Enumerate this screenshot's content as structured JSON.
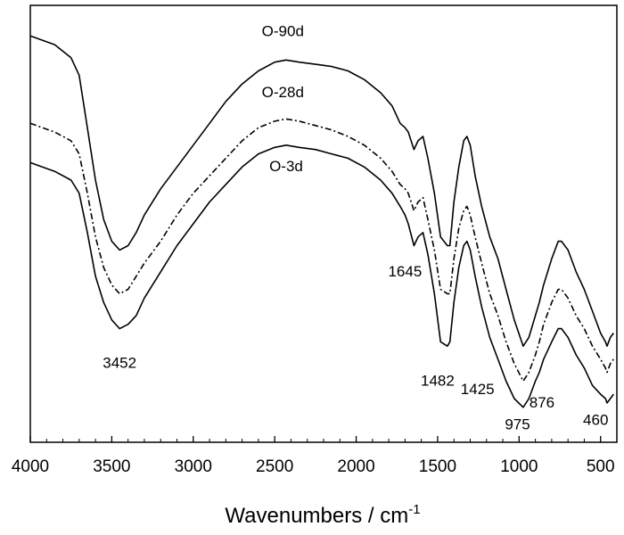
{
  "chart_data": {
    "type": "line",
    "title": "",
    "xlabel": "Wavenumbers / cm",
    "xlabel_superscript": "-1",
    "ylabel": "",
    "xlim": [
      4000,
      400
    ],
    "ylim": [
      0,
      100
    ],
    "x_reversed": true,
    "y_ticks_shown": false,
    "grid": false,
    "x_ticks": [
      "4000",
      "3500",
      "3000",
      "2500",
      "2000",
      "1500",
      "1000",
      "500"
    ],
    "series": [
      {
        "name": "O-90d",
        "line_style": "solid",
        "color": "#000000",
        "points": [
          [
            4000,
            93
          ],
          [
            3850,
            91
          ],
          [
            3750,
            88
          ],
          [
            3700,
            84
          ],
          [
            3650,
            72
          ],
          [
            3600,
            60
          ],
          [
            3550,
            51
          ],
          [
            3500,
            46
          ],
          [
            3452,
            44
          ],
          [
            3400,
            45
          ],
          [
            3350,
            48
          ],
          [
            3300,
            52
          ],
          [
            3200,
            58
          ],
          [
            3100,
            63
          ],
          [
            3000,
            68
          ],
          [
            2900,
            73
          ],
          [
            2800,
            78
          ],
          [
            2700,
            82
          ],
          [
            2600,
            85
          ],
          [
            2500,
            87
          ],
          [
            2430,
            87.5
          ],
          [
            2350,
            87
          ],
          [
            2250,
            86.5
          ],
          [
            2150,
            86
          ],
          [
            2050,
            85
          ],
          [
            1950,
            83
          ],
          [
            1850,
            80
          ],
          [
            1780,
            77
          ],
          [
            1730,
            73
          ],
          [
            1700,
            72
          ],
          [
            1680,
            71
          ],
          [
            1645,
            67
          ],
          [
            1620,
            69
          ],
          [
            1590,
            70
          ],
          [
            1560,
            65
          ],
          [
            1520,
            57
          ],
          [
            1482,
            47
          ],
          [
            1440,
            45
          ],
          [
            1425,
            45
          ],
          [
            1400,
            55
          ],
          [
            1370,
            63
          ],
          [
            1340,
            69
          ],
          [
            1320,
            70
          ],
          [
            1300,
            68
          ],
          [
            1270,
            61
          ],
          [
            1230,
            54
          ],
          [
            1180,
            47
          ],
          [
            1130,
            42
          ],
          [
            1080,
            35
          ],
          [
            1030,
            28
          ],
          [
            975,
            22
          ],
          [
            940,
            24
          ],
          [
            900,
            29
          ],
          [
            876,
            32
          ],
          [
            850,
            36
          ],
          [
            800,
            42
          ],
          [
            760,
            46
          ],
          [
            740,
            46
          ],
          [
            700,
            44
          ],
          [
            650,
            39
          ],
          [
            600,
            35
          ],
          [
            550,
            30
          ],
          [
            500,
            25
          ],
          [
            470,
            23
          ],
          [
            460,
            22
          ],
          [
            440,
            24
          ],
          [
            420,
            25
          ]
        ]
      },
      {
        "name": "O-28d",
        "line_style": "dashdot",
        "color": "#000000",
        "points": [
          [
            4000,
            73
          ],
          [
            3850,
            71
          ],
          [
            3750,
            69
          ],
          [
            3700,
            66
          ],
          [
            3650,
            57
          ],
          [
            3600,
            47
          ],
          [
            3550,
            40
          ],
          [
            3500,
            36
          ],
          [
            3452,
            34
          ],
          [
            3400,
            35
          ],
          [
            3350,
            38
          ],
          [
            3300,
            41
          ],
          [
            3200,
            46
          ],
          [
            3100,
            52
          ],
          [
            3000,
            57
          ],
          [
            2900,
            61
          ],
          [
            2800,
            65
          ],
          [
            2700,
            69
          ],
          [
            2600,
            72
          ],
          [
            2500,
            73.5
          ],
          [
            2430,
            74
          ],
          [
            2350,
            73.5
          ],
          [
            2250,
            72.5
          ],
          [
            2150,
            71.5
          ],
          [
            2050,
            70
          ],
          [
            1950,
            68
          ],
          [
            1850,
            65
          ],
          [
            1780,
            62
          ],
          [
            1730,
            59
          ],
          [
            1700,
            58
          ],
          [
            1680,
            57
          ],
          [
            1645,
            53
          ],
          [
            1620,
            55
          ],
          [
            1590,
            56
          ],
          [
            1560,
            51
          ],
          [
            1520,
            44
          ],
          [
            1482,
            35
          ],
          [
            1440,
            34
          ],
          [
            1425,
            34
          ],
          [
            1400,
            42
          ],
          [
            1370,
            49
          ],
          [
            1340,
            53
          ],
          [
            1320,
            54
          ],
          [
            1300,
            52
          ],
          [
            1270,
            47
          ],
          [
            1230,
            41
          ],
          [
            1180,
            34
          ],
          [
            1130,
            29
          ],
          [
            1080,
            23
          ],
          [
            1030,
            18
          ],
          [
            975,
            14
          ],
          [
            940,
            16
          ],
          [
            900,
            20
          ],
          [
            876,
            23
          ],
          [
            850,
            27
          ],
          [
            800,
            32
          ],
          [
            760,
            35
          ],
          [
            740,
            35
          ],
          [
            700,
            33
          ],
          [
            650,
            29
          ],
          [
            600,
            26
          ],
          [
            550,
            22
          ],
          [
            500,
            19
          ],
          [
            470,
            17
          ],
          [
            460,
            16
          ],
          [
            440,
            18
          ],
          [
            420,
            19
          ]
        ]
      },
      {
        "name": "O-3d",
        "line_style": "solid",
        "color": "#000000",
        "points": [
          [
            4000,
            64
          ],
          [
            3850,
            62
          ],
          [
            3750,
            60
          ],
          [
            3700,
            57
          ],
          [
            3650,
            48
          ],
          [
            3600,
            38
          ],
          [
            3550,
            32
          ],
          [
            3500,
            28
          ],
          [
            3452,
            26
          ],
          [
            3400,
            27
          ],
          [
            3350,
            29
          ],
          [
            3300,
            33
          ],
          [
            3200,
            39
          ],
          [
            3100,
            45
          ],
          [
            3000,
            50
          ],
          [
            2900,
            55
          ],
          [
            2800,
            59
          ],
          [
            2700,
            63
          ],
          [
            2600,
            66
          ],
          [
            2500,
            67.5
          ],
          [
            2430,
            68
          ],
          [
            2350,
            67.5
          ],
          [
            2250,
            67
          ],
          [
            2150,
            66
          ],
          [
            2050,
            65
          ],
          [
            1950,
            63
          ],
          [
            1850,
            60
          ],
          [
            1780,
            57
          ],
          [
            1730,
            54
          ],
          [
            1700,
            52
          ],
          [
            1680,
            50
          ],
          [
            1645,
            45
          ],
          [
            1620,
            47
          ],
          [
            1590,
            48
          ],
          [
            1560,
            43
          ],
          [
            1520,
            34
          ],
          [
            1482,
            23
          ],
          [
            1440,
            22
          ],
          [
            1425,
            23
          ],
          [
            1400,
            32
          ],
          [
            1370,
            40
          ],
          [
            1340,
            45
          ],
          [
            1320,
            46
          ],
          [
            1300,
            44
          ],
          [
            1270,
            38
          ],
          [
            1230,
            31
          ],
          [
            1180,
            24
          ],
          [
            1130,
            19
          ],
          [
            1080,
            14
          ],
          [
            1030,
            10
          ],
          [
            975,
            8
          ],
          [
            940,
            10
          ],
          [
            900,
            14
          ],
          [
            876,
            16
          ],
          [
            850,
            19
          ],
          [
            800,
            23
          ],
          [
            760,
            26
          ],
          [
            740,
            26
          ],
          [
            700,
            24
          ],
          [
            650,
            20
          ],
          [
            600,
            17
          ],
          [
            550,
            13
          ],
          [
            500,
            11
          ],
          [
            470,
            10
          ],
          [
            460,
            9
          ],
          [
            440,
            10
          ],
          [
            420,
            11
          ]
        ]
      }
    ],
    "curve_labels": [
      {
        "text": "O-90d",
        "x": 2450,
        "y": 93
      },
      {
        "text": "O-28d",
        "x": 2450,
        "y": 79
      },
      {
        "text": "O-3d",
        "x": 2430,
        "y": 62
      }
    ],
    "peak_annotations": [
      {
        "text": "3452",
        "x": 3452,
        "y": 17
      },
      {
        "text": "1645",
        "x": 1700,
        "y": 38
      },
      {
        "text": "1482",
        "x": 1500,
        "y": 13
      },
      {
        "text": "1425",
        "x": 1255,
        "y": 11
      },
      {
        "text": "975",
        "x": 1010,
        "y": 3
      },
      {
        "text": "876",
        "x": 860,
        "y": 8
      },
      {
        "text": "460",
        "x": 530,
        "y": 4
      }
    ]
  }
}
